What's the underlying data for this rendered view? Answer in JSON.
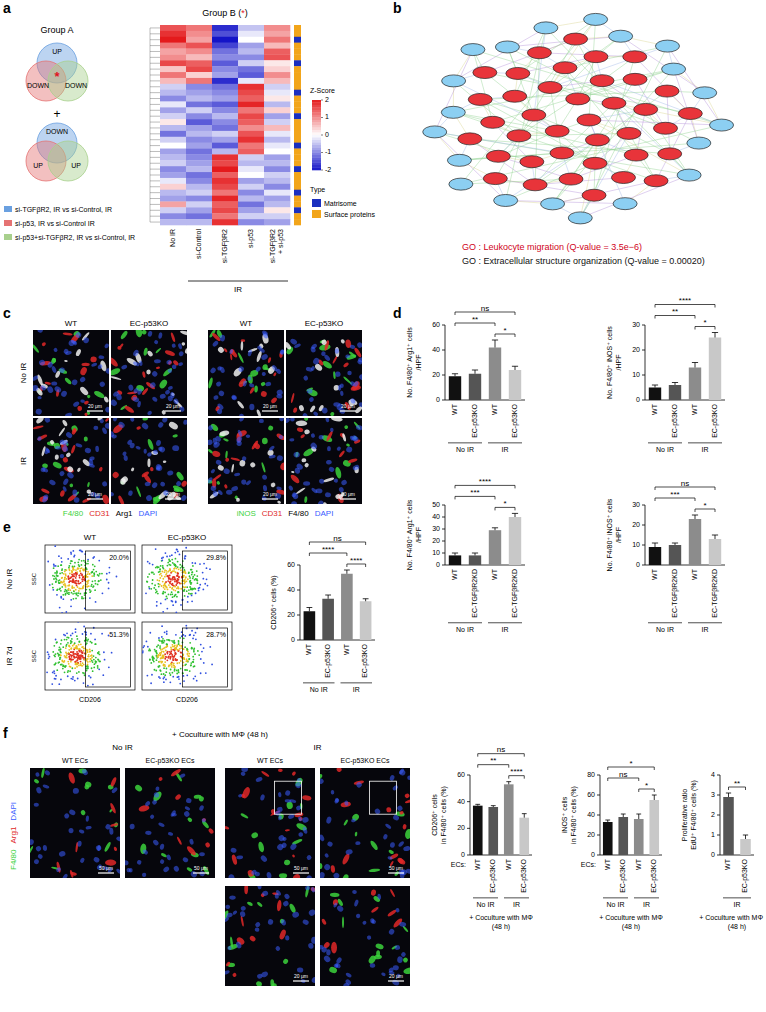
{
  "panel_letters": [
    "a",
    "b",
    "c",
    "d",
    "e",
    "f"
  ],
  "panel_a": {
    "group_a": {
      "title": "Group A",
      "diagrams": [
        [
          "UP",
          "DOWN",
          "DOWN"
        ],
        [
          "DOWN",
          "UP",
          "UP"
        ]
      ],
      "plus": "+",
      "star": "*"
    },
    "legend": [
      {
        "text": "si-TGFβR2, IR vs si-Control, IR",
        "color": "#6aa0e0"
      },
      {
        "text": "si-p53, IR vs si-Control IR",
        "color": "#e57373"
      },
      {
        "text": "si-p53+si-TGFβR2, IR vs si-Control, IR",
        "color": "#a8d08d"
      }
    ],
    "heatmap": {
      "title": "Group B (*)",
      "columns": [
        [
          "No IR"
        ],
        [
          "si-Control"
        ],
        [
          "si-TGFβR2"
        ],
        [
          "si-p53"
        ],
        [
          "si-TGFβR2",
          "+ si-p53"
        ]
      ],
      "column_group": {
        "label": "IR",
        "from": 1,
        "to": 4
      },
      "cells": [
        [
          1.5,
          1.2,
          -1.8,
          -0.5,
          1.0
        ],
        [
          1.8,
          1.0,
          -1.5,
          -0.2,
          0.8
        ],
        [
          2.0,
          0.8,
          -2.0,
          0.0,
          1.2
        ],
        [
          1.2,
          1.5,
          -1.6,
          -0.8,
          0.6
        ],
        [
          0.8,
          1.0,
          -1.2,
          -0.6,
          1.4
        ],
        [
          1.0,
          0.6,
          -1.0,
          -1.0,
          1.5
        ],
        [
          1.6,
          1.4,
          -1.4,
          -0.4,
          0.2
        ],
        [
          0.5,
          1.6,
          -1.0,
          -1.2,
          0.4
        ],
        [
          1.2,
          0.4,
          -0.8,
          -1.4,
          1.0
        ],
        [
          0.6,
          1.2,
          -1.8,
          -0.2,
          0.6
        ],
        [
          -0.4,
          -1.0,
          -1.2,
          1.8,
          -0.4
        ],
        [
          -0.6,
          -0.8,
          -1.0,
          1.6,
          -0.2
        ],
        [
          -1.0,
          -0.6,
          -0.8,
          1.4,
          0.2
        ],
        [
          -0.2,
          -1.2,
          -1.4,
          1.9,
          -0.6
        ],
        [
          -0.8,
          -0.4,
          -1.0,
          1.2,
          0.4
        ],
        [
          -0.4,
          -1.0,
          -0.6,
          1.6,
          -0.8
        ],
        [
          0.2,
          -1.4,
          -1.0,
          1.4,
          -0.4
        ],
        [
          -0.6,
          -0.8,
          -1.2,
          1.0,
          0.6
        ],
        [
          -1.2,
          -0.6,
          -0.4,
          1.5,
          -0.2
        ],
        [
          -0.4,
          -1.0,
          -0.8,
          1.8,
          -0.6
        ],
        [
          0.0,
          -0.8,
          -1.4,
          1.2,
          -0.2
        ],
        [
          -0.8,
          -1.2,
          -0.6,
          1.4,
          0.0
        ],
        [
          -0.6,
          -1.0,
          1.8,
          -0.4,
          -0.8
        ],
        [
          -0.4,
          -0.8,
          1.6,
          -0.6,
          -0.6
        ],
        [
          -1.0,
          -0.6,
          2.0,
          -0.2,
          -1.0
        ],
        [
          -0.8,
          -1.2,
          1.4,
          0.0,
          -0.4
        ],
        [
          -0.2,
          -1.0,
          1.8,
          -0.8,
          -0.6
        ],
        [
          0.4,
          -0.6,
          1.6,
          -0.4,
          -1.0
        ],
        [
          -0.6,
          -0.4,
          1.2,
          -1.0,
          -0.2
        ],
        [
          -0.8,
          -1.0,
          1.9,
          -0.6,
          -0.8
        ],
        [
          0.8,
          -0.4,
          1.4,
          -1.2,
          -0.6
        ],
        [
          -0.4,
          -0.8,
          1.6,
          -0.8,
          0.2
        ],
        [
          -1.0,
          -1.2,
          1.2,
          -0.4,
          -0.4
        ],
        [
          -0.6,
          -0.6,
          1.8,
          -1.0,
          -0.8
        ]
      ],
      "row_types": [
        1,
        1,
        0,
        1,
        1,
        1,
        0,
        1,
        1,
        1,
        1,
        0,
        1,
        1,
        1,
        0,
        1,
        1,
        1,
        1,
        0,
        1,
        1,
        1,
        0,
        1,
        1,
        1,
        0,
        1,
        1,
        0,
        1,
        1
      ],
      "zlim": [
        -2,
        2
      ],
      "zticks": [
        2,
        1,
        0,
        -1,
        -2
      ],
      "z_title": "Z-Score",
      "type_title": "Type",
      "types": [
        {
          "name": "Matrisome",
          "color": "#1a2fc0"
        },
        {
          "name": "Surface proteins",
          "color": "#f2a51a"
        }
      ]
    }
  },
  "panel_b": {
    "node_groups": [
      {
        "color": "#e8343a",
        "count": 38
      },
      {
        "color": "#8ccff2",
        "count": 20
      }
    ],
    "go_terms": [
      {
        "text": "GO : Leukocyte migration (Q-value = 3.5e−6)",
        "color": "#d0021b"
      },
      {
        "text": "GO : Extracellular structure organization (Q-value = 0.00020)",
        "color": "#111111"
      }
    ]
  },
  "panel_c": {
    "rows": [
      "No IR",
      "IR"
    ],
    "scale_bar": "20 μm",
    "blocks": [
      {
        "columns": [
          "WT",
          "EC-p53KO"
        ],
        "stains": [
          {
            "text": "F4/80",
            "color": "#3cd23c"
          },
          {
            "text": "CD31",
            "color": "#e02828"
          },
          {
            "text": "Arg1",
            "color": "#f0f0f0"
          },
          {
            "text": "DAPI",
            "color": "#3a5cff"
          }
        ]
      },
      {
        "columns": [
          "WT",
          "EC-p53KO"
        ],
        "stains": [
          {
            "text": "iNOS",
            "color": "#3cd23c"
          },
          {
            "text": "CD31",
            "color": "#e02828"
          },
          {
            "text": "F4/80",
            "color": "#f0f0f0"
          },
          {
            "text": "DAPI",
            "color": "#3a5cff"
          }
        ]
      }
    ]
  },
  "panel_e": {
    "columns": [
      "WT",
      "EC-p53KO"
    ],
    "rows": [
      "No IR",
      "IR 7d"
    ],
    "gate_labels": [
      [
        "20.0%",
        "29.8%"
      ],
      [
        "51.3%",
        "28.7%"
      ]
    ],
    "x_label": "CD206",
    "y_label": "SSC"
  },
  "panel_f": {
    "title": "+ Coculture with MΦ (48 h)",
    "groups": [
      {
        "label": "No IR",
        "from": 0,
        "to": 1
      },
      {
        "label": "IR",
        "from": 2,
        "to": 3
      }
    ],
    "columns": [
      "WT ECs",
      "EC-p53KO ECs",
      "WT ECs",
      "EC-p53KO ECs"
    ],
    "stains": [
      {
        "text": "F4/80",
        "color": "#3cd23c"
      },
      {
        "text": "Arg1",
        "color": "#e02828"
      },
      {
        "text": "DAPI",
        "color": "#3a5cff"
      }
    ],
    "scale_bar": "50 μm",
    "inset_scale_bar": "20 μm",
    "insets": [
      2,
      3
    ]
  },
  "chart_data": [
    {
      "type": "bar",
      "y_label": [
        "No. F4/80⁺ Arg1⁺ cells",
        "/HPF"
      ],
      "categories": [
        "WT",
        "EC-p53KO",
        "WT",
        "EC-p53KO"
      ],
      "values": [
        19,
        21,
        42,
        24
      ],
      "errors": [
        2,
        3,
        6,
        3
      ],
      "colors": [
        "#111111",
        "#555555",
        "#8c8c8c",
        "#c8c8c8"
      ],
      "ylim": [
        0,
        60
      ],
      "yticks": [
        0,
        20,
        40,
        60
      ],
      "groups": [
        {
          "label": "No IR",
          "from": 0,
          "to": 1
        },
        {
          "label": "IR",
          "from": 2,
          "to": 3
        }
      ],
      "annotations": [
        {
          "from": 2,
          "to": 3,
          "label": "*"
        },
        {
          "from": 0,
          "to": 2,
          "label": "**"
        },
        {
          "from": 0,
          "to": 3,
          "label": "ns"
        }
      ]
    },
    {
      "type": "bar",
      "y_label": [
        "No. F4/80⁺ iNOS⁺ cells",
        "/HPF"
      ],
      "categories": [
        "WT",
        "EC-p53KO",
        "WT",
        "EC-p53KO"
      ],
      "values": [
        5,
        6,
        13,
        25
      ],
      "errors": [
        1,
        1,
        2,
        2
      ],
      "colors": [
        "#111111",
        "#555555",
        "#8c8c8c",
        "#c8c8c8"
      ],
      "ylim": [
        0,
        30
      ],
      "yticks": [
        0,
        10,
        20,
        30
      ],
      "groups": [
        {
          "label": "No IR",
          "from": 0,
          "to": 1
        },
        {
          "label": "IR",
          "from": 2,
          "to": 3
        }
      ],
      "annotations": [
        {
          "from": 2,
          "to": 3,
          "label": "*"
        },
        {
          "from": 0,
          "to": 2,
          "label": "**"
        },
        {
          "from": 0,
          "to": 3,
          "label": "****"
        }
      ]
    },
    {
      "type": "bar",
      "y_label": [
        "No. F4/80⁺ Arg1⁺ cells",
        "/HPF"
      ],
      "categories": [
        "WT",
        "EC-TGFβR2KD",
        "WT",
        "EC-TGFβR2KD"
      ],
      "values": [
        8,
        8,
        29,
        40
      ],
      "errors": [
        2,
        2,
        2,
        3
      ],
      "colors": [
        "#111111",
        "#555555",
        "#8c8c8c",
        "#c8c8c8"
      ],
      "ylim": [
        0,
        50
      ],
      "yticks": [
        0,
        10,
        20,
        30,
        40,
        50
      ],
      "groups": [
        {
          "label": "No IR",
          "from": 0,
          "to": 1
        },
        {
          "label": "IR",
          "from": 2,
          "to": 3
        }
      ],
      "annotations": [
        {
          "from": 2,
          "to": 3,
          "label": "*"
        },
        {
          "from": 0,
          "to": 2,
          "label": "***"
        },
        {
          "from": 0,
          "to": 3,
          "label": "****"
        }
      ]
    },
    {
      "type": "bar",
      "y_label": [
        "No. F4/80⁺ iNOS⁺ cells",
        "/HPF"
      ],
      "categories": [
        "WT",
        "EC-TGFβR2KD",
        "WT",
        "EC-TGFβR2KD"
      ],
      "values": [
        9,
        10,
        23,
        13
      ],
      "errors": [
        2,
        1,
        2,
        2
      ],
      "colors": [
        "#111111",
        "#555555",
        "#8c8c8c",
        "#c8c8c8"
      ],
      "ylim": [
        0,
        30
      ],
      "yticks": [
        0,
        10,
        20,
        30
      ],
      "groups": [
        {
          "label": "No IR",
          "from": 0,
          "to": 1
        },
        {
          "label": "IR",
          "from": 2,
          "to": 3
        }
      ],
      "annotations": [
        {
          "from": 2,
          "to": 3,
          "label": "*"
        },
        {
          "from": 0,
          "to": 2,
          "label": "***"
        },
        {
          "from": 0,
          "to": 3,
          "label": "ns"
        }
      ]
    },
    {
      "type": "bar",
      "y_label": [
        "CD206⁺ cells (%)"
      ],
      "categories": [
        "WT",
        "EC-p53KO",
        "WT",
        "EC-p53KO"
      ],
      "values": [
        23,
        33,
        53,
        31
      ],
      "errors": [
        3,
        3,
        3,
        2
      ],
      "colors": [
        "#111111",
        "#555555",
        "#8c8c8c",
        "#c8c8c8"
      ],
      "ylim": [
        0,
        60
      ],
      "yticks": [
        0,
        20,
        40,
        60
      ],
      "groups": [
        {
          "label": "No IR",
          "from": 0,
          "to": 1
        },
        {
          "label": "IR",
          "from": 2,
          "to": 3
        }
      ],
      "annotations": [
        {
          "from": 2,
          "to": 3,
          "label": "****"
        },
        {
          "from": 0,
          "to": 2,
          "label": "****"
        },
        {
          "from": 0,
          "to": 3,
          "label": "ns"
        }
      ]
    },
    {
      "type": "bar",
      "y_label": [
        "CD206⁺ cells",
        "in F4/80⁺ cells (%)"
      ],
      "categories": [
        "WT",
        "EC-p53KO",
        "WT",
        "EC-p53KO"
      ],
      "values": [
        37,
        36,
        53,
        28
      ],
      "errors": [
        1,
        1,
        2,
        3
      ],
      "colors": [
        "#111111",
        "#555555",
        "#8c8c8c",
        "#c8c8c8"
      ],
      "ylim": [
        0,
        60
      ],
      "yticks": [
        0,
        20,
        40,
        60
      ],
      "groups": [
        {
          "label": "No IR",
          "from": 0,
          "to": 1
        },
        {
          "label": "IR",
          "from": 2,
          "to": 3
        }
      ],
      "annotations": [
        {
          "from": 2,
          "to": 3,
          "label": "****"
        },
        {
          "from": 0,
          "to": 2,
          "label": "**"
        },
        {
          "from": 0,
          "to": 3,
          "label": "ns"
        }
      ],
      "x_prefix": "ECs:",
      "x_note": [
        "+ Coculture with MΦ",
        "(48 h)"
      ]
    },
    {
      "type": "bar",
      "y_label": [
        "iNOS⁺ cells",
        "in F4/80⁺ cells (%)"
      ],
      "categories": [
        "WT",
        "EC-p53KO",
        "WT",
        "EC-p53KO"
      ],
      "values": [
        33,
        38,
        36,
        55
      ],
      "errors": [
        2,
        3,
        5,
        5
      ],
      "colors": [
        "#111111",
        "#555555",
        "#8c8c8c",
        "#c8c8c8"
      ],
      "ylim": [
        0,
        80
      ],
      "yticks": [
        0,
        20,
        40,
        60,
        80
      ],
      "groups": [
        {
          "label": "No IR",
          "from": 0,
          "to": 1
        },
        {
          "label": "IR",
          "from": 2,
          "to": 3
        }
      ],
      "annotations": [
        {
          "from": 2,
          "to": 3,
          "label": "*"
        },
        {
          "from": 0,
          "to": 2,
          "label": "ns"
        },
        {
          "from": 0,
          "to": 3,
          "label": "*"
        }
      ],
      "x_prefix": "ECs:",
      "x_note": [
        "+ Coculture with MΦ",
        "(48 h)"
      ]
    },
    {
      "type": "bar",
      "y_label": [
        "Proliferative ratio",
        "EdU⁺ F4/80⁺ cells (%)"
      ],
      "categories": [
        "WT",
        "EC-p53KO"
      ],
      "values": [
        2.9,
        0.8
      ],
      "errors": [
        0.2,
        0.2
      ],
      "colors": [
        "#555555",
        "#c8c8c8"
      ],
      "ylim": [
        0,
        4
      ],
      "yticks": [
        0,
        1,
        2,
        3,
        4
      ],
      "groups": [
        {
          "label": "IR",
          "from": 0,
          "to": 1
        }
      ],
      "annotations": [
        {
          "from": 0,
          "to": 1,
          "label": "**"
        }
      ],
      "x_note": [
        "+ Coculture with MΦ",
        "(48 h)"
      ]
    }
  ]
}
